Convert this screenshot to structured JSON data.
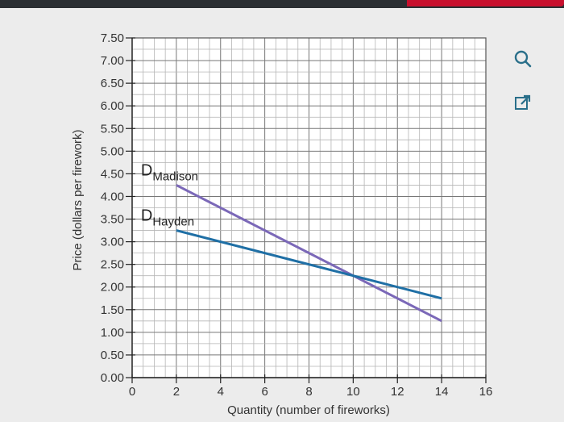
{
  "chart_data": {
    "type": "line",
    "xlabel": "Quantity (number of fireworks)",
    "ylabel": "Price (dollars per firework)",
    "xlim": [
      0,
      16
    ],
    "ylim": [
      0,
      7.5
    ],
    "x_ticks": [
      0,
      2,
      4,
      6,
      8,
      10,
      12,
      14,
      16
    ],
    "x_tick_labels": [
      "0",
      "2",
      "4",
      "6",
      "8",
      "10",
      "12",
      "14",
      "16"
    ],
    "y_ticks": [
      0,
      0.5,
      1,
      1.5,
      2,
      2.5,
      3,
      3.5,
      4,
      4.5,
      5,
      5.5,
      6,
      6.5,
      7,
      7.5
    ],
    "y_tick_labels": [
      "0.00",
      "0.50",
      "1.00",
      "1.50",
      "2.00",
      "2.50",
      "3.00",
      "3.50",
      "4.00",
      "4.50",
      "5.00",
      "5.50",
      "6.00",
      "6.50",
      "7.00",
      "7.50"
    ],
    "grid": true,
    "series": [
      {
        "name": "D",
        "subscript": "Madison",
        "color": "#7b68b8",
        "x": [
          2,
          14
        ],
        "y": [
          4.25,
          1.25
        ]
      },
      {
        "name": "D",
        "subscript": "Hayden",
        "color": "#1f6fa5",
        "x": [
          2,
          14
        ],
        "y": [
          3.25,
          1.75
        ]
      }
    ]
  },
  "icons": {
    "zoom": "zoom-icon",
    "popout": "external-link-icon"
  }
}
